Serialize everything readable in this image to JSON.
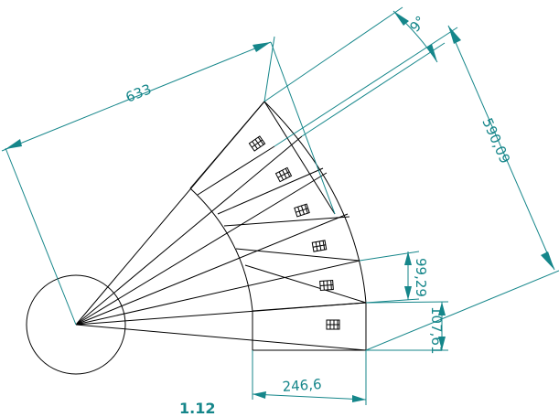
{
  "drawing": {
    "dimensions": {
      "overall_radius": "633",
      "step_angle": "9°",
      "outer_width": "590,09",
      "step_rise": "99,29",
      "first_step_rise": "107,61",
      "step_depth": "246,6"
    },
    "step_count": 6,
    "bottom_label": "1.12",
    "colors": {
      "geometry": "#000000",
      "dimension": "#15868a"
    }
  }
}
